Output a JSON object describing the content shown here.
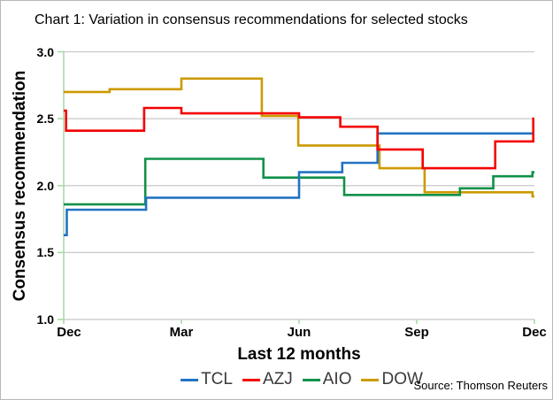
{
  "chart_data": {
    "type": "line",
    "interpolation": "step-after",
    "title": "Chart 1: Variation in consensus recommendations for selected stocks",
    "xlabel": "Last 12 months",
    "ylabel": "Consensus recommendation",
    "source": "Source: Thomson Reuters",
    "xlim_months": [
      0,
      12
    ],
    "ylim": [
      1.0,
      3.0
    ],
    "y_ticks": [
      "1.0",
      "1.5",
      "2.0",
      "2.5",
      "3.0"
    ],
    "x_ticks": [
      {
        "label": "Dec",
        "month": 0
      },
      {
        "label": "Mar",
        "month": 3
      },
      {
        "label": "Jun",
        "month": 6
      },
      {
        "label": "Sep",
        "month": 9
      },
      {
        "label": "Dec",
        "month": 12
      }
    ],
    "grid": "horizontal",
    "legend_position": "bottom-center",
    "grid_color": "#c8c8c8",
    "axis_color": "#a5d6a5",
    "legend_text_color": "#3a3a3a",
    "series": [
      {
        "name": "TCL",
        "color": "#2273c3",
        "points": [
          [
            0,
            1.63
          ],
          [
            0.08,
            1.82
          ],
          [
            2.1,
            1.91
          ],
          [
            6.0,
            2.1
          ],
          [
            7.1,
            2.17
          ],
          [
            8.0,
            2.39
          ],
          [
            12,
            2.39
          ]
        ]
      },
      {
        "name": "AZJ",
        "color": "#f40000",
        "points": [
          [
            0,
            2.56
          ],
          [
            0.06,
            2.41
          ],
          [
            2.05,
            2.58
          ],
          [
            3.0,
            2.54
          ],
          [
            6.0,
            2.51
          ],
          [
            7.05,
            2.44
          ],
          [
            8.0,
            2.27
          ],
          [
            9.15,
            2.13
          ],
          [
            11.0,
            2.33
          ],
          [
            11.97,
            2.5
          ],
          [
            12,
            2.5
          ]
        ]
      },
      {
        "name": "AIO",
        "color": "#119149",
        "points": [
          [
            0,
            1.86
          ],
          [
            2.08,
            2.2
          ],
          [
            5.09,
            2.06
          ],
          [
            7.15,
            1.93
          ],
          [
            10.1,
            1.98
          ],
          [
            10.95,
            2.07
          ],
          [
            11.95,
            2.1
          ],
          [
            12,
            2.1
          ]
        ]
      },
      {
        "name": "DOW",
        "color": "#cc9a00",
        "points": [
          [
            0,
            2.7
          ],
          [
            1.17,
            2.72
          ],
          [
            3.0,
            2.8
          ],
          [
            5.05,
            2.52
          ],
          [
            5.98,
            2.3
          ],
          [
            8.05,
            2.13
          ],
          [
            9.2,
            1.95
          ],
          [
            11.95,
            1.92
          ],
          [
            12,
            1.92
          ]
        ]
      }
    ]
  }
}
